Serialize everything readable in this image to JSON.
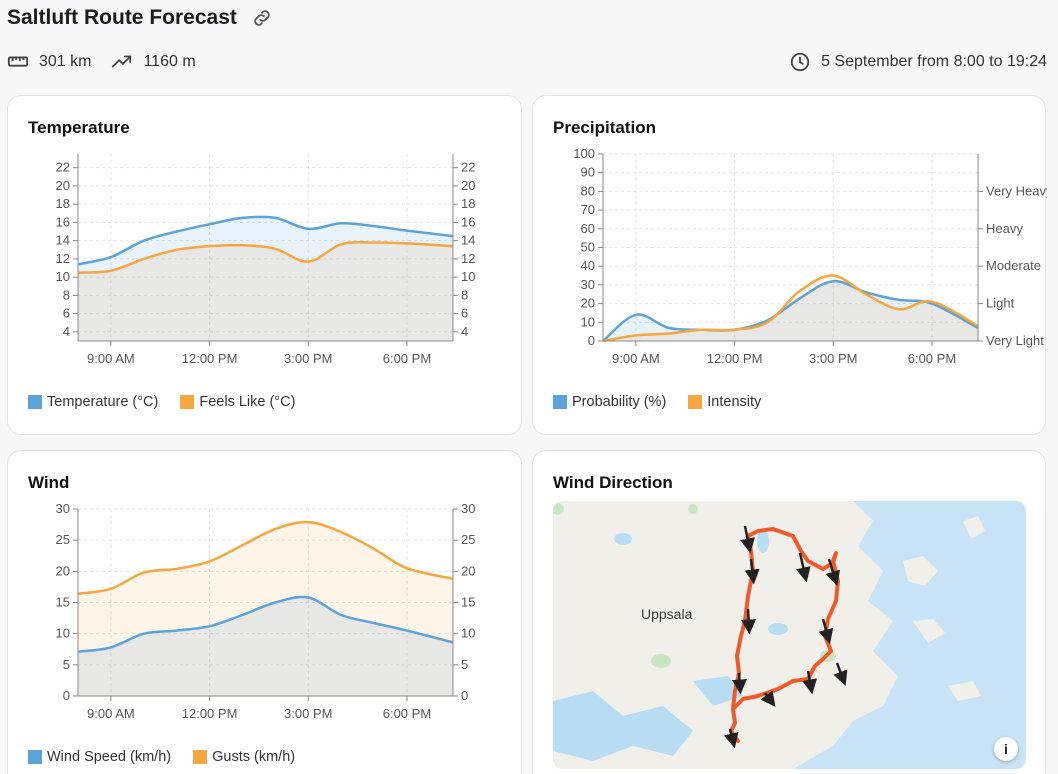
{
  "header": {
    "title": "Saltluft Route Forecast",
    "distance": "301 km",
    "elevation": "1160 m",
    "schedule": "5 September from 8:00 to 19:24"
  },
  "icons": {
    "link": "link-icon",
    "distance": "ruler-icon",
    "elevation": "trending-up-icon",
    "time": "clock-icon"
  },
  "colors": {
    "blue": "#5ba3d9",
    "orange": "#f5a63e",
    "route": "#f05a28"
  },
  "chart_data": [
    {
      "id": "temperature",
      "title": "Temperature",
      "type": "area",
      "x_ticks": [
        "9:00 AM",
        "12:00 PM",
        "3:00 PM",
        "6:00 PM"
      ],
      "x_tick_hours": [
        9,
        12,
        15,
        18
      ],
      "x_range": [
        8,
        19.4
      ],
      "ylim": [
        3,
        23.5
      ],
      "y_ticks": [
        4,
        6,
        8,
        10,
        12,
        14,
        16,
        18,
        20,
        22
      ],
      "right_axis_ticks": [
        "4",
        "6",
        "8",
        "10",
        "12",
        "14",
        "16",
        "18",
        "20",
        "22"
      ],
      "grid": true,
      "legend": "bottom-left",
      "x": [
        8,
        9,
        10,
        11,
        12,
        13,
        14,
        15,
        16,
        17,
        18,
        19.4
      ],
      "series": [
        {
          "name": "Temperature (°C)",
          "color": "#5ba3d9",
          "values": [
            11.4,
            12.2,
            14.0,
            15.0,
            15.8,
            16.5,
            16.5,
            15.3,
            15.9,
            15.6,
            15.1,
            14.5
          ]
        },
        {
          "name": "Feels Like (°C)",
          "color": "#f5a63e",
          "values": [
            10.5,
            10.7,
            12.0,
            13.0,
            13.4,
            13.5,
            13.1,
            11.7,
            13.6,
            13.8,
            13.7,
            13.4
          ]
        }
      ]
    },
    {
      "id": "precipitation",
      "title": "Precipitation",
      "type": "area",
      "x_ticks": [
        "9:00 AM",
        "12:00 PM",
        "3:00 PM",
        "6:00 PM"
      ],
      "x_tick_hours": [
        9,
        12,
        15,
        18
      ],
      "x_range": [
        8,
        19.4
      ],
      "ylim": [
        0,
        100
      ],
      "y_ticks": [
        0,
        10,
        20,
        30,
        40,
        50,
        60,
        70,
        80,
        90,
        100
      ],
      "right_axis_ticks": [
        "Very Light",
        "Light",
        "Moderate",
        "Heavy",
        "Very Heavy"
      ],
      "right_axis_tick_values": [
        0,
        20,
        40,
        60,
        80
      ],
      "grid": true,
      "legend": "bottom-left",
      "x": [
        8,
        9,
        10,
        11,
        12,
        13,
        14,
        15,
        16,
        17,
        18,
        19.4
      ],
      "series": [
        {
          "name": "Probability (%)",
          "color": "#5ba3d9",
          "values": [
            0,
            14,
            7,
            6,
            6,
            11,
            23,
            32,
            26,
            22,
            20,
            7
          ]
        },
        {
          "name": "Intensity",
          "color": "#f5a63e",
          "values": [
            0,
            3,
            4,
            6,
            6,
            10,
            27,
            35,
            25,
            17,
            21,
            8
          ]
        }
      ]
    },
    {
      "id": "wind",
      "title": "Wind",
      "type": "area",
      "x_ticks": [
        "9:00 AM",
        "12:00 PM",
        "3:00 PM",
        "6:00 PM"
      ],
      "x_tick_hours": [
        9,
        12,
        15,
        18
      ],
      "x_range": [
        8,
        19.4
      ],
      "ylim": [
        0,
        30
      ],
      "y_ticks": [
        0,
        5,
        10,
        15,
        20,
        25,
        30
      ],
      "right_axis_ticks": [
        "0",
        "5",
        "10",
        "15",
        "20",
        "25",
        "30"
      ],
      "grid": true,
      "legend": "bottom-left",
      "x": [
        8,
        9,
        10,
        11,
        12,
        13,
        14,
        15,
        16,
        17,
        18,
        19.4
      ],
      "series": [
        {
          "name": "Wind Speed (km/h)",
          "color": "#5ba3d9",
          "values": [
            7.1,
            7.8,
            10.0,
            10.5,
            11.2,
            13.0,
            15.0,
            15.8,
            13.0,
            11.7,
            10.5,
            8.6
          ]
        },
        {
          "name": "Gusts (km/h)",
          "color": "#f5a63e",
          "values": [
            16.4,
            17.2,
            19.8,
            20.4,
            21.6,
            24.2,
            26.8,
            27.9,
            26.3,
            23.6,
            20.5,
            18.8
          ]
        }
      ]
    }
  ],
  "wind_direction": {
    "title": "Wind Direction",
    "city_label": "Uppsala"
  }
}
